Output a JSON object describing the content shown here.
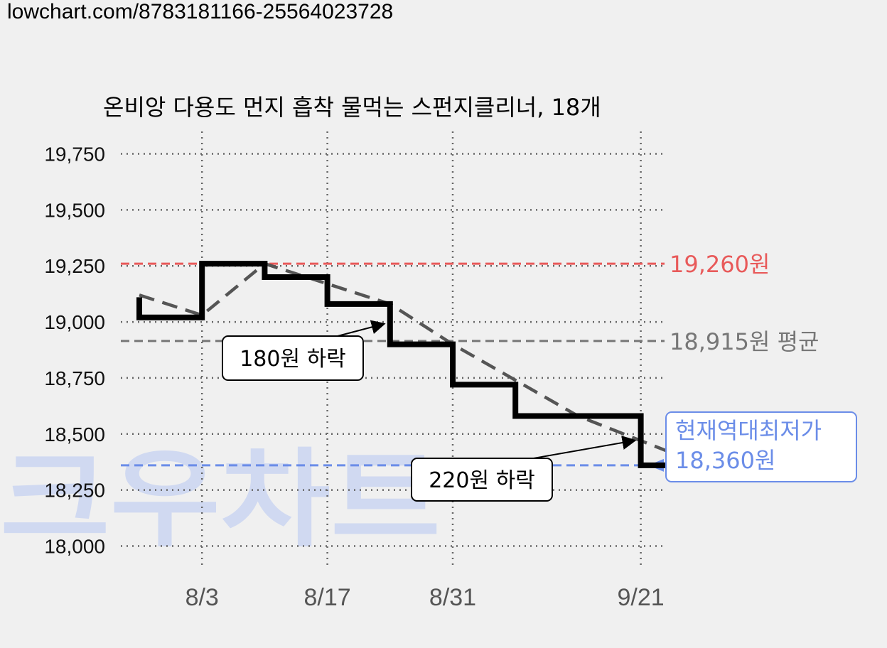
{
  "url_text": "lowchart.com/8783181166-25564023728",
  "watermark": "크우차트",
  "chart_data": {
    "type": "line",
    "title": "온비앙 다용도 먼지 흡착 물먹는 스펀지클리너, 18개",
    "xlabel": "",
    "ylabel": "",
    "x_ticks": [
      "8/3",
      "8/17",
      "8/31",
      "9/21"
    ],
    "y_ticks": [
      "18,000",
      "18,250",
      "18,500",
      "18,750",
      "19,000",
      "19,250",
      "19,500",
      "19,750"
    ],
    "y_tick_values": [
      18000,
      18250,
      18500,
      18750,
      19000,
      19250,
      19500,
      19750
    ],
    "ylim": [
      17900,
      19850
    ],
    "grid": true,
    "series": [
      {
        "kind": "step",
        "color": "#000000",
        "points": [
          {
            "x": "7/27",
            "y": 19020
          },
          {
            "x": "8/3",
            "y": 19260
          },
          {
            "x": "8/10",
            "y": 19200
          },
          {
            "x": "8/17",
            "y": 19080
          },
          {
            "x": "8/24",
            "y": 18900
          },
          {
            "x": "8/31",
            "y": 18720
          },
          {
            "x": "9/7",
            "y": 18580
          },
          {
            "x": "9/21",
            "y": 18360
          },
          {
            "x": "9/28",
            "y": 18360
          }
        ]
      },
      {
        "kind": "trend",
        "color": "#555555",
        "points": [
          {
            "x": "7/27",
            "y": 19120
          },
          {
            "x": "8/3",
            "y": 19030
          },
          {
            "x": "8/10",
            "y": 19260
          },
          {
            "x": "8/24",
            "y": 19080
          },
          {
            "x": "8/31",
            "y": 18900
          },
          {
            "x": "9/14",
            "y": 18580
          },
          {
            "x": "9/28",
            "y": 18360
          }
        ]
      }
    ],
    "reference_lines": [
      {
        "value": 19260,
        "label": "19,260원",
        "color": "#e85a5a"
      },
      {
        "value": 18915,
        "label": "18,915원 평균",
        "color": "#777777"
      },
      {
        "value": 18360,
        "label": "",
        "color": "#6b8de8"
      }
    ],
    "annotations": [
      {
        "text": "180원 하락",
        "at": {
          "x": "8/24",
          "y": 18990
        }
      },
      {
        "text": "220원 하락",
        "at": {
          "x": "9/21",
          "y": 18470
        }
      }
    ],
    "current_low_box": {
      "line1": "현재역대최저가",
      "line2": "18,360원",
      "color": "#6b8de8"
    }
  }
}
